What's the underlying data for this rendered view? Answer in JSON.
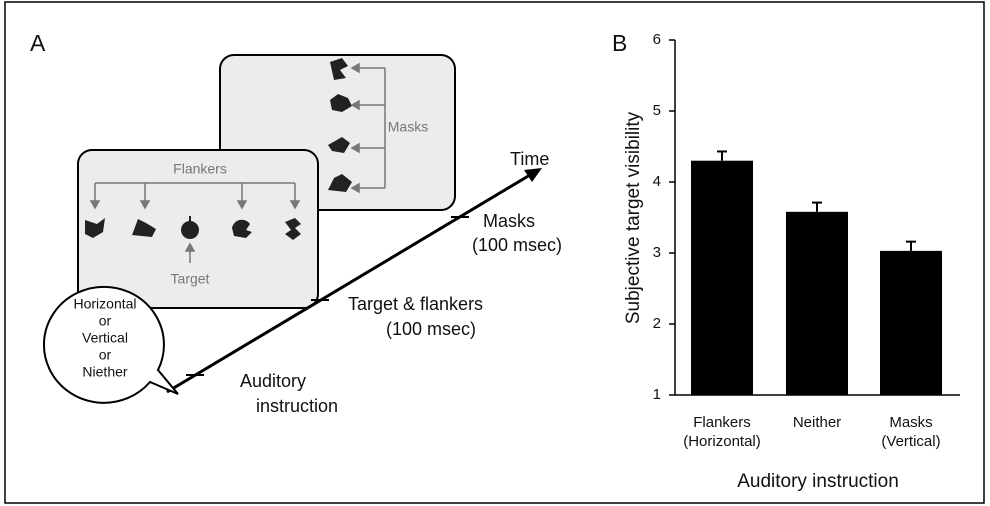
{
  "chart_data": {
    "type": "bar",
    "panel_label": "B",
    "categories": [
      "Flankers\n(Horizontal)",
      "Neither",
      "Masks\n(Vertical)"
    ],
    "values": [
      4.3,
      3.58,
      3.03
    ],
    "errors": [
      0.13,
      0.13,
      0.13
    ],
    "color": "#000000",
    "x_label": "Auditory instruction",
    "y_label": "Subjective target visibility",
    "ylim": [
      1,
      6
    ],
    "yticks": [
      1,
      2,
      3,
      4,
      5,
      6
    ],
    "grid": false
  },
  "diagram": {
    "panel_label": "A",
    "time_label": "Time",
    "flankers_label": "Flankers",
    "target_label": "Target",
    "masks_label": "Masks",
    "events": [
      [
        "Masks",
        "(100 msec)"
      ],
      [
        "Target & flankers",
        "(100 msec)"
      ],
      [
        "Auditory",
        "instruction"
      ]
    ],
    "speech_bubble": [
      "Horizontal",
      "or",
      "Vertical",
      "or",
      "Niether"
    ]
  }
}
